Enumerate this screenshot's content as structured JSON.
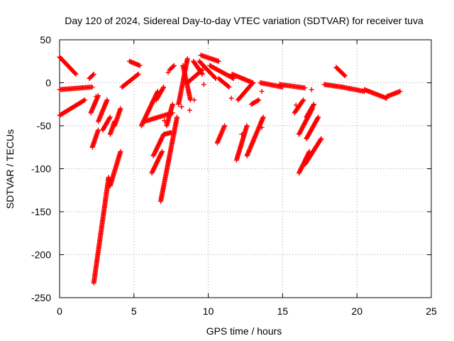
{
  "chart_data": {
    "type": "scatter",
    "title": "Day 120 of 2024, Sidereal Day-to-day VTEC variation (SDTVAR) for receiver tuva",
    "xlabel": "GPS time / hours",
    "ylabel": "SDTVAR / TECUs",
    "xlim": [
      0,
      25
    ],
    "ylim": [
      -250,
      50
    ],
    "xticks": [
      0,
      5,
      10,
      15,
      20,
      25
    ],
    "yticks": [
      -250,
      -200,
      -150,
      -100,
      -50,
      0,
      50
    ],
    "grid": true,
    "marker": "+",
    "color": "#ff0000",
    "tracks": [
      {
        "x0": 0.0,
        "y0": 30,
        "x1": 1.1,
        "y1": 10
      },
      {
        "x0": 0.0,
        "y0": -8,
        "x1": 2.2,
        "y1": -5
      },
      {
        "x0": 0.0,
        "y0": -38,
        "x1": 1.7,
        "y1": -20
      },
      {
        "x0": 2.0,
        "y0": 5,
        "x1": 2.3,
        "y1": 10
      },
      {
        "x0": 2.1,
        "y0": -35,
        "x1": 2.6,
        "y1": -15
      },
      {
        "x0": 2.2,
        "y0": -75,
        "x1": 2.6,
        "y1": -55
      },
      {
        "x0": 2.3,
        "y0": -233,
        "x1": 3.3,
        "y1": -110
      },
      {
        "x0": 2.6,
        "y0": -45,
        "x1": 3.2,
        "y1": -20
      },
      {
        "x0": 2.9,
        "y0": -55,
        "x1": 3.4,
        "y1": -40
      },
      {
        "x0": 3.4,
        "y0": -120,
        "x1": 4.1,
        "y1": -80
      },
      {
        "x0": 3.4,
        "y0": -60,
        "x1": 3.7,
        "y1": -45
      },
      {
        "x0": 3.7,
        "y0": -50,
        "x1": 4.1,
        "y1": -30
      },
      {
        "x0": 4.2,
        "y0": -5,
        "x1": 5.3,
        "y1": 10
      },
      {
        "x0": 4.7,
        "y0": 25,
        "x1": 5.4,
        "y1": 20
      },
      {
        "x0": 5.5,
        "y0": -50,
        "x1": 6.6,
        "y1": -10
      },
      {
        "x0": 5.7,
        "y0": -45,
        "x1": 7.6,
        "y1": -35
      },
      {
        "x0": 6.2,
        "y0": -105,
        "x1": 6.9,
        "y1": -80
      },
      {
        "x0": 6.3,
        "y0": -85,
        "x1": 7.0,
        "y1": -60
      },
      {
        "x0": 6.5,
        "y0": -20,
        "x1": 7.0,
        "y1": -5
      },
      {
        "x0": 6.8,
        "y0": -138,
        "x1": 7.9,
        "y1": -40
      },
      {
        "x0": 7.2,
        "y0": -50,
        "x1": 7.6,
        "y1": -25
      },
      {
        "x0": 7.0,
        "y0": -60,
        "x1": 7.5,
        "y1": -58
      },
      {
        "x0": 7.4,
        "y0": 15,
        "x1": 7.7,
        "y1": 20
      },
      {
        "x0": 8.0,
        "y0": -25,
        "x1": 8.6,
        "y1": 28
      },
      {
        "x0": 8.3,
        "y0": 20,
        "x1": 8.8,
        "y1": -20
      },
      {
        "x0": 8.6,
        "y0": 0,
        "x1": 9.6,
        "y1": 15
      },
      {
        "x0": 9.0,
        "y0": 25,
        "x1": 9.6,
        "y1": 10
      },
      {
        "x0": 9.4,
        "y0": 25,
        "x1": 10.5,
        "y1": 5
      },
      {
        "x0": 9.5,
        "y0": 32,
        "x1": 10.7,
        "y1": 25
      },
      {
        "x0": 10.1,
        "y0": 20,
        "x1": 11.7,
        "y1": 5
      },
      {
        "x0": 10.6,
        "y0": -70,
        "x1": 11.1,
        "y1": -50
      },
      {
        "x0": 10.7,
        "y0": 5,
        "x1": 11.4,
        "y1": -5
      },
      {
        "x0": 11.6,
        "y0": 10,
        "x1": 13.0,
        "y1": 0
      },
      {
        "x0": 11.9,
        "y0": -90,
        "x1": 12.6,
        "y1": -50
      },
      {
        "x0": 12.0,
        "y0": -20,
        "x1": 13.0,
        "y1": 0
      },
      {
        "x0": 12.6,
        "y0": -85,
        "x1": 13.7,
        "y1": -40
      },
      {
        "x0": 12.9,
        "y0": -25,
        "x1": 13.4,
        "y1": -20
      },
      {
        "x0": 13.5,
        "y0": 0,
        "x1": 15.0,
        "y1": -5
      },
      {
        "x0": 14.8,
        "y0": -2,
        "x1": 16.5,
        "y1": -6
      },
      {
        "x0": 15.8,
        "y0": -35,
        "x1": 16.4,
        "y1": -20
      },
      {
        "x0": 16.1,
        "y0": -60,
        "x1": 17.0,
        "y1": -30
      },
      {
        "x0": 16.1,
        "y0": -105,
        "x1": 16.8,
        "y1": -80
      },
      {
        "x0": 16.5,
        "y0": -95,
        "x1": 17.6,
        "y1": -65
      },
      {
        "x0": 16.6,
        "y0": -65,
        "x1": 17.4,
        "y1": -40
      },
      {
        "x0": 16.6,
        "y0": -40,
        "x1": 17.1,
        "y1": -25
      },
      {
        "x0": 17.8,
        "y0": -2,
        "x1": 19.0,
        "y1": -5
      },
      {
        "x0": 18.6,
        "y0": 18,
        "x1": 19.2,
        "y1": 8
      },
      {
        "x0": 19.0,
        "y0": -5,
        "x1": 20.5,
        "y1": -10
      },
      {
        "x0": 20.5,
        "y0": -8,
        "x1": 22.0,
        "y1": -18
      },
      {
        "x0": 22.0,
        "y0": -16,
        "x1": 22.9,
        "y1": -10
      }
    ],
    "points": [
      [
        2.45,
        -16
      ],
      [
        3.3,
        -112
      ],
      [
        7.3,
        12
      ],
      [
        8.2,
        -28
      ],
      [
        8.75,
        -32
      ],
      [
        9.3,
        18
      ],
      [
        9.7,
        -2
      ],
      [
        9.05,
        -20
      ],
      [
        11.55,
        -18
      ],
      [
        12.25,
        -60
      ],
      [
        13.6,
        -52
      ],
      [
        13.6,
        -10
      ],
      [
        16.95,
        -8
      ],
      [
        15.9,
        -26
      ],
      [
        7.05,
        -44
      ]
    ]
  }
}
